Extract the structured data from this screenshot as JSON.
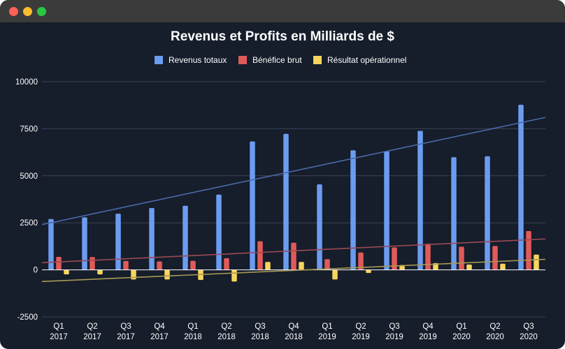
{
  "window": {
    "controls": [
      "close",
      "minimize",
      "zoom"
    ]
  },
  "colors": {
    "background": "#161d2b",
    "grid": "#3a4356",
    "revenue": "#6b9cf0",
    "gross": "#e05a5a",
    "operating": "#f7d55d",
    "revenue_trend": "#4a6aa8",
    "gross_trend": "#9a4a55",
    "operating_trend": "#a89a55"
  },
  "chart_data": {
    "type": "bar",
    "title": "Revenus et Profits en Milliards de $",
    "xlabel": "",
    "ylabel": "",
    "ylim": [
      -2500,
      10000
    ],
    "yticks": [
      -2500,
      0,
      2500,
      5000,
      7500,
      10000
    ],
    "ytick_labels": [
      "-2500",
      "0",
      "2500",
      "5000",
      "7500",
      "10000"
    ],
    "grid": true,
    "legend_position": "top-center",
    "categories": [
      [
        "Q1",
        "2017"
      ],
      [
        "Q2",
        "2017"
      ],
      [
        "Q3",
        "2017"
      ],
      [
        "Q4",
        "2017"
      ],
      [
        "Q1",
        "2018"
      ],
      [
        "Q2",
        "2018"
      ],
      [
        "Q3",
        "2018"
      ],
      [
        "Q4",
        "2018"
      ],
      [
        "Q1",
        "2019"
      ],
      [
        "Q2",
        "2019"
      ],
      [
        "Q3",
        "2019"
      ],
      [
        "Q4",
        "2019"
      ],
      [
        "Q1",
        "2020"
      ],
      [
        "Q2",
        "2020"
      ],
      [
        "Q3",
        "2020"
      ]
    ],
    "series": [
      {
        "name": "Revenus totaux",
        "color": "#6b9cf0",
        "values": [
          2700,
          2790,
          2985,
          3288,
          3409,
          4002,
          6824,
          7226,
          4541,
          6350,
          6303,
          7384,
          5985,
          6036,
          8771
        ]
      },
      {
        "name": "Bénéfice brut",
        "color": "#e05a5a",
        "values": [
          690,
          680,
          470,
          450,
          480,
          620,
          1520,
          1440,
          570,
          920,
          1190,
          1390,
          1230,
          1270,
          2060
        ]
      },
      {
        "name": "Résultat opérationnel",
        "color": "#f7d55d",
        "values": [
          -240,
          -240,
          -510,
          -510,
          -540,
          -620,
          420,
          420,
          -510,
          -170,
          260,
          360,
          280,
          330,
          810
        ]
      }
    ],
    "trendlines": [
      {
        "series": "Revenus totaux",
        "start": 2400,
        "end": 8100,
        "color": "#4a6aa8"
      },
      {
        "series": "Bénéfice brut",
        "start": 380,
        "end": 1640,
        "color": "#9a4a55"
      },
      {
        "series": "Résultat opérationnel",
        "start": -620,
        "end": 560,
        "color": "#a89a55"
      }
    ]
  }
}
